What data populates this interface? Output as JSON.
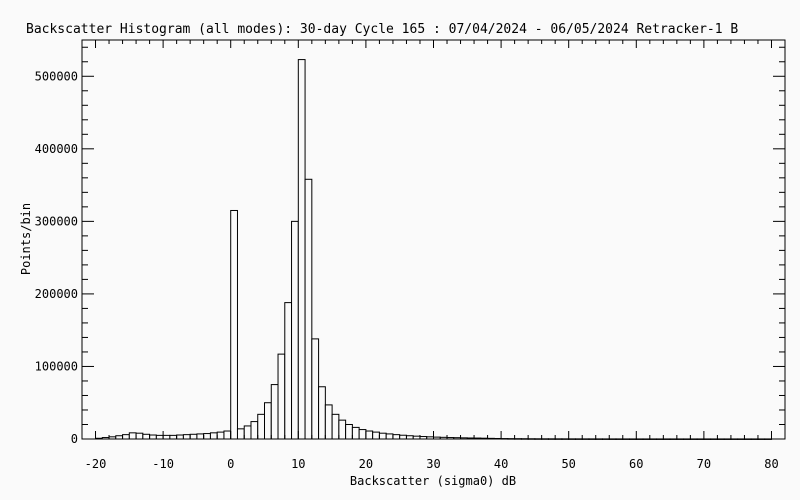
{
  "chart_data": {
    "type": "bar",
    "title": "Backscatter Histogram (all modes): 30-day Cycle 165 : 07/04/2024 - 06/05/2024 Retracker-1 B",
    "xlabel": "Backscatter (sigma0) dB",
    "ylabel": "Points/bin",
    "xlim": [
      -22,
      82
    ],
    "ylim": [
      0,
      550000
    ],
    "x_ticks": [
      "-20",
      "-10",
      "0",
      "10",
      "20",
      "30",
      "40",
      "50",
      "60",
      "70",
      "80"
    ],
    "y_ticks": [
      "0",
      "100000",
      "200000",
      "300000",
      "400000",
      "500000"
    ],
    "bin_width": 1,
    "bins": [
      {
        "x": -20,
        "y": 1000
      },
      {
        "x": -19,
        "y": 2000
      },
      {
        "x": -18,
        "y": 3000
      },
      {
        "x": -17,
        "y": 4500
      },
      {
        "x": -16,
        "y": 6000
      },
      {
        "x": -15,
        "y": 8500
      },
      {
        "x": -14,
        "y": 8000
      },
      {
        "x": -13,
        "y": 6500
      },
      {
        "x": -12,
        "y": 5500
      },
      {
        "x": -11,
        "y": 5000
      },
      {
        "x": -10,
        "y": 5000
      },
      {
        "x": -9,
        "y": 5000
      },
      {
        "x": -8,
        "y": 5500
      },
      {
        "x": -7,
        "y": 6000
      },
      {
        "x": -6,
        "y": 6500
      },
      {
        "x": -5,
        "y": 7000
      },
      {
        "x": -4,
        "y": 7500
      },
      {
        "x": -3,
        "y": 8500
      },
      {
        "x": -2,
        "y": 9500
      },
      {
        "x": -1,
        "y": 11000
      },
      {
        "x": 0,
        "y": 315000
      },
      {
        "x": 1,
        "y": 14000
      },
      {
        "x": 2,
        "y": 18000
      },
      {
        "x": 3,
        "y": 24000
      },
      {
        "x": 4,
        "y": 34000
      },
      {
        "x": 5,
        "y": 50000
      },
      {
        "x": 6,
        "y": 75000
      },
      {
        "x": 7,
        "y": 117000
      },
      {
        "x": 8,
        "y": 188000
      },
      {
        "x": 9,
        "y": 300000
      },
      {
        "x": 10,
        "y": 523000
      },
      {
        "x": 11,
        "y": 358000
      },
      {
        "x": 12,
        "y": 138000
      },
      {
        "x": 13,
        "y": 72000
      },
      {
        "x": 14,
        "y": 47000
      },
      {
        "x": 15,
        "y": 34000
      },
      {
        "x": 16,
        "y": 26000
      },
      {
        "x": 17,
        "y": 20000
      },
      {
        "x": 18,
        "y": 16000
      },
      {
        "x": 19,
        "y": 13000
      },
      {
        "x": 20,
        "y": 11000
      },
      {
        "x": 21,
        "y": 9500
      },
      {
        "x": 22,
        "y": 8000
      },
      {
        "x": 23,
        "y": 7000
      },
      {
        "x": 24,
        "y": 6000
      },
      {
        "x": 25,
        "y": 5200
      },
      {
        "x": 26,
        "y": 4500
      },
      {
        "x": 27,
        "y": 3900
      },
      {
        "x": 28,
        "y": 3400
      },
      {
        "x": 29,
        "y": 3000
      },
      {
        "x": 30,
        "y": 2600
      },
      {
        "x": 31,
        "y": 2300
      },
      {
        "x": 32,
        "y": 2000
      },
      {
        "x": 33,
        "y": 1800
      },
      {
        "x": 34,
        "y": 1600
      },
      {
        "x": 35,
        "y": 1400
      },
      {
        "x": 36,
        "y": 1300
      },
      {
        "x": 37,
        "y": 1100
      },
      {
        "x": 38,
        "y": 900
      },
      {
        "x": 39,
        "y": 700
      },
      {
        "x": 40,
        "y": 600
      },
      {
        "x": 41,
        "y": 500
      },
      {
        "x": 42,
        "y": 450
      },
      {
        "x": 43,
        "y": 400
      },
      {
        "x": 44,
        "y": 350
      },
      {
        "x": 45,
        "y": 300
      },
      {
        "x": 46,
        "y": 280
      },
      {
        "x": 47,
        "y": 260
      },
      {
        "x": 48,
        "y": 240
      },
      {
        "x": 49,
        "y": 220
      },
      {
        "x": 50,
        "y": 200
      },
      {
        "x": 51,
        "y": 190
      },
      {
        "x": 52,
        "y": 180
      },
      {
        "x": 53,
        "y": 170
      },
      {
        "x": 54,
        "y": 160
      },
      {
        "x": 55,
        "y": 150
      },
      {
        "x": 56,
        "y": 140
      },
      {
        "x": 57,
        "y": 130
      },
      {
        "x": 58,
        "y": 120
      },
      {
        "x": 59,
        "y": 110
      },
      {
        "x": 60,
        "y": 100
      },
      {
        "x": 61,
        "y": 100
      },
      {
        "x": 62,
        "y": 100
      },
      {
        "x": 63,
        "y": 100
      },
      {
        "x": 64,
        "y": 100
      },
      {
        "x": 65,
        "y": 100
      },
      {
        "x": 66,
        "y": 100
      },
      {
        "x": 67,
        "y": 100
      },
      {
        "x": 68,
        "y": 100
      },
      {
        "x": 69,
        "y": 100
      },
      {
        "x": 70,
        "y": 100
      },
      {
        "x": 71,
        "y": 100
      },
      {
        "x": 72,
        "y": 100
      },
      {
        "x": 73,
        "y": 100
      },
      {
        "x": 74,
        "y": 100
      },
      {
        "x": 75,
        "y": 100
      },
      {
        "x": 76,
        "y": 100
      },
      {
        "x": 77,
        "y": 100
      },
      {
        "x": 78,
        "y": 100
      },
      {
        "x": 79,
        "y": 100
      }
    ],
    "grid": false,
    "legend": "none",
    "bar_fill": "#fafafa",
    "bar_stroke": "#000000"
  }
}
